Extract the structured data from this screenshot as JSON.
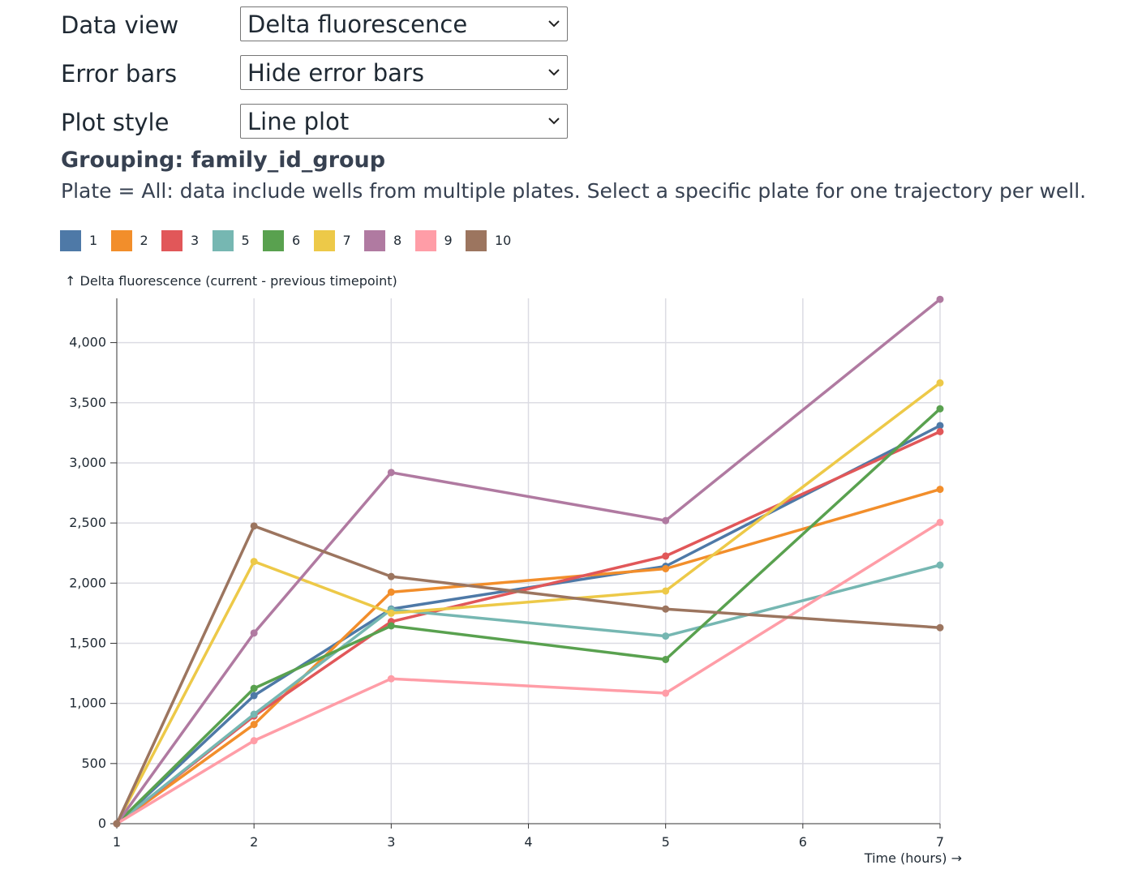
{
  "controls": [
    {
      "label": "Data view",
      "value": "Delta fluorescence"
    },
    {
      "label": "Error bars",
      "value": "Hide error bars"
    },
    {
      "label": "Plot style",
      "value": "Line plot"
    }
  ],
  "grouping_title": "Grouping: family_id_group",
  "note": "Plate = All: data include wells from multiple plates. Select a specific plate for one trajectory per well.",
  "chart_data": {
    "type": "line",
    "ylabel": "↑ Delta fluorescence (current - previous timepoint)",
    "xlabel": "Time (hours) →",
    "x_ticks": [
      1,
      2,
      3,
      4,
      5,
      6,
      7
    ],
    "y_ticks": [
      0,
      500,
      1000,
      1500,
      2000,
      2500,
      3000,
      3500,
      4000
    ],
    "y_tick_labels": [
      "0",
      "500",
      "1,000",
      "1,500",
      "2,000",
      "2,500",
      "3,000",
      "3,500",
      "4,000"
    ],
    "xlim": [
      1,
      7
    ],
    "ylim": [
      0,
      4360
    ],
    "grid": true,
    "legend_placement": "top-left",
    "x": [
      1,
      2,
      3,
      5,
      7
    ],
    "series": [
      {
        "name": "1",
        "color": "#4e79a7",
        "values": [
          0,
          1065,
          1785,
          2140,
          3310
        ]
      },
      {
        "name": "2",
        "color": "#f28e2b",
        "values": [
          0,
          825,
          1925,
          2120,
          2780
        ]
      },
      {
        "name": "3",
        "color": "#e15759",
        "values": [
          0,
          895,
          1680,
          2225,
          3260
        ]
      },
      {
        "name": "5",
        "color": "#76b7b2",
        "values": [
          0,
          910,
          1780,
          1560,
          2150
        ]
      },
      {
        "name": "6",
        "color": "#59a14f",
        "values": [
          0,
          1125,
          1645,
          1365,
          3450
        ]
      },
      {
        "name": "7",
        "color": "#edc948",
        "values": [
          0,
          2180,
          1750,
          1935,
          3665
        ]
      },
      {
        "name": "8",
        "color": "#b07aa1",
        "values": [
          0,
          1585,
          2920,
          2520,
          4360
        ]
      },
      {
        "name": "9",
        "color": "#ff9da7",
        "values": [
          0,
          690,
          1205,
          1085,
          2505
        ]
      },
      {
        "name": "10",
        "color": "#9c755f",
        "values": [
          0,
          2475,
          2055,
          1785,
          1630
        ]
      }
    ]
  }
}
